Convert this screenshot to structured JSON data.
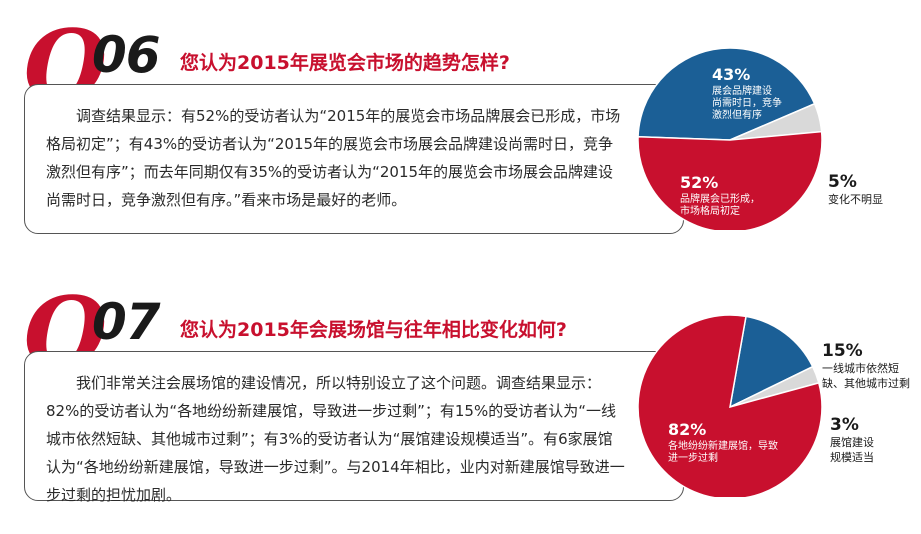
{
  "q06": {
    "letter": "Q",
    "number": "06",
    "title": "您认为2015年展览会市场的趋势怎样?",
    "body": "调查结果显示：有52%的受访者认为“2015年的展览会市场品牌展会已形成，市场格局初定”；有43%的受访者认为“2015年的展览会市场展会品牌建设尚需时日，竞争激烈但有序”；而去年同期仅有35%的受访者认为“2015年的展览会市场展会品牌建设尚需时日，竞争激烈但有序。”看来市场是最好的老师。"
  },
  "q07": {
    "letter": "Q",
    "number": "07",
    "title": "您认为2015年会展场馆与往年相比变化如何?",
    "body": "我们非常关注会展场馆的建设情况，所以特别设立了这个问题。调查结果显示：82%的受访者认为“各地纷纷新建展馆，导致进一步过剩”；有15%的受访者认为“一线城市依然短缺、其他城市过剩”；有3%的受访者认为“展馆建设规模适当”。有6家展馆认为“各地纷纷新建展馆，导致进一步过剩”。与2014年相比，业内对新建展馆导致进一步过剩的担忧加剧。"
  },
  "colors": {
    "red": "#c8102e",
    "blue": "#1b5f96",
    "gray": "#d9d9d9",
    "text": "#2a2a2a"
  },
  "chart_data": [
    {
      "type": "pie",
      "slices": [
        {
          "label_lines": [
            "展会品牌建设",
            "尚需时日，竞争",
            "激烈但有序"
          ],
          "pct_text": "43%",
          "value": 43,
          "color": "#1b5f96"
        },
        {
          "label_lines": [
            "变化不明显"
          ],
          "pct_text": "5%",
          "value": 5,
          "color": "#d9d9d9"
        },
        {
          "label_lines": [
            "品牌展会已形成，",
            "市场格局初定"
          ],
          "pct_text": "52%",
          "value": 52,
          "color": "#c8102e"
        }
      ]
    },
    {
      "type": "pie",
      "slices": [
        {
          "label_lines": [
            "一线城市依然短",
            "缺、其他城市过剩"
          ],
          "pct_text": "15%",
          "value": 15,
          "color": "#1b5f96"
        },
        {
          "label_lines": [
            "展馆建设",
            "规模适当"
          ],
          "pct_text": "3%",
          "value": 3,
          "color": "#d9d9d9"
        },
        {
          "label_lines": [
            "各地纷纷新建展馆，导致",
            "进一步过剩"
          ],
          "pct_text": "82%",
          "value": 82,
          "color": "#c8102e"
        }
      ]
    }
  ]
}
